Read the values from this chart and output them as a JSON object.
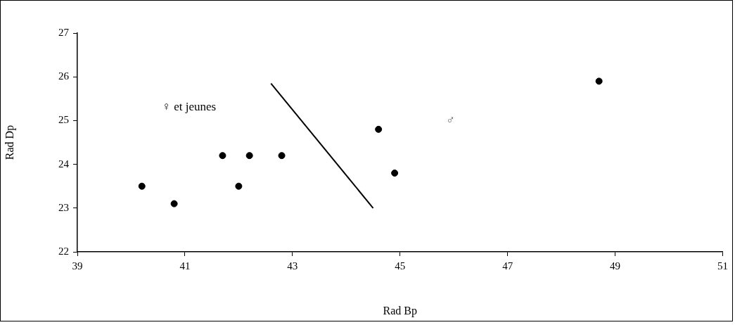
{
  "chart_data": {
    "type": "scatter",
    "xlabel": "Rad Bp",
    "ylabel": "Rad Dp",
    "xlim": [
      39,
      51
    ],
    "xticks": [
      39,
      41,
      43,
      45,
      47,
      49,
      51
    ],
    "ylim": [
      22,
      27
    ],
    "yticks": [
      22,
      23,
      24,
      25,
      26,
      27
    ],
    "grid": false,
    "legend": false,
    "marker": "circle",
    "series": [
      {
        "color": "#000000",
        "x": [
          40.2,
          40.8,
          41.7,
          42.0,
          42.2,
          42.8,
          44.6,
          44.9,
          48.7
        ],
        "values": [
          23.5,
          23.1,
          24.2,
          23.5,
          24.2,
          24.2,
          24.8,
          23.8,
          25.9
        ]
      },
      {
        "type": "line",
        "color": "#000000",
        "marker": "none",
        "line_style": "solid",
        "x": [
          42.6,
          44.5
        ],
        "values": [
          25.85,
          23.0
        ]
      }
    ],
    "annotations": [
      "♀ et jeunes",
      "♂"
    ]
  }
}
